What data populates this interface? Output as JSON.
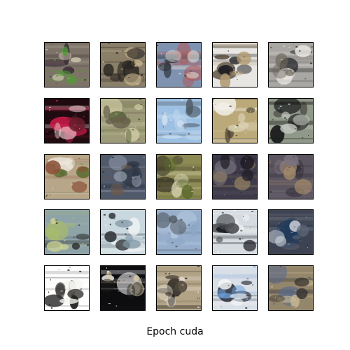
{
  "figure": {
    "caption": "Epoch cuda",
    "grid_rows": 5,
    "grid_cols": 5,
    "frame_color": "#000000",
    "samples": [
      {
        "bg": "#7e7368",
        "blobs": [
          {
            "c": "#3e2f3a"
          },
          {
            "c": "#c9c3ad"
          },
          {
            "c": "#4f9e2f"
          }
        ]
      },
      {
        "bg": "#8a7f69",
        "blobs": [
          {
            "c": "#1a1716"
          },
          {
            "c": "#cdbb8f"
          },
          {
            "c": "#2b2522"
          }
        ]
      },
      {
        "bg": "#7f93b1",
        "blobs": [
          {
            "c": "#b4524f"
          },
          {
            "c": "#2b3138"
          },
          {
            "c": "#e2d8cc"
          }
        ]
      },
      {
        "bg": "#e8e6e2",
        "blobs": [
          {
            "c": "#5a4e3d"
          },
          {
            "c": "#1b1b22"
          },
          {
            "c": "#b19a71"
          }
        ]
      },
      {
        "bg": "#a9a7a4",
        "blobs": [
          {
            "c": "#2a2b2f"
          },
          {
            "c": "#ece9e4"
          },
          {
            "c": "#6a6459"
          }
        ]
      },
      {
        "bg": "#1f0b10",
        "blobs": [
          {
            "c": "#d01b4b"
          },
          {
            "c": "#f0d5d8"
          },
          {
            "c": "#6b1d2c"
          }
        ]
      },
      {
        "bg": "#9c9a78",
        "blobs": [
          {
            "c": "#d4d0a8"
          },
          {
            "c": "#4c5a31"
          },
          {
            "c": "#6a604e"
          }
        ]
      },
      {
        "bg": "#9dbfe1",
        "blobs": [
          {
            "c": "#bfd7ef"
          },
          {
            "c": "#4b5661"
          },
          {
            "c": "#d6e5f3"
          }
        ]
      },
      {
        "bg": "#bba979",
        "blobs": [
          {
            "c": "#f3f1ec"
          },
          {
            "c": "#4a4232"
          },
          {
            "c": "#d9cfb2"
          }
        ]
      },
      {
        "bg": "#909889",
        "blobs": [
          {
            "c": "#0e0e10"
          },
          {
            "c": "#2c2a26"
          },
          {
            "c": "#c2c7bf"
          }
        ]
      },
      {
        "bg": "#b8a689",
        "blobs": [
          {
            "c": "#ede8dc"
          },
          {
            "c": "#5a6b31"
          },
          {
            "c": "#8b4e35"
          }
        ]
      },
      {
        "bg": "#515a6b",
        "blobs": [
          {
            "c": "#2c3442"
          },
          {
            "c": "#9aa4b3"
          },
          {
            "c": "#6d5a4c"
          }
        ]
      },
      {
        "bg": "#8e8a55",
        "blobs": [
          {
            "c": "#2d2c1f"
          },
          {
            "c": "#d8d4b4"
          },
          {
            "c": "#5d6a2e"
          }
        ]
      },
      {
        "bg": "#3e3a4a",
        "blobs": [
          {
            "c": "#6d6a73"
          },
          {
            "c": "#8a7a5f"
          },
          {
            "c": "#1f1d26"
          }
        ]
      },
      {
        "bg": "#5b5560",
        "blobs": [
          {
            "c": "#2f2b33"
          },
          {
            "c": "#a48a6a"
          },
          {
            "c": "#7b7280"
          }
        ]
      },
      {
        "bg": "#8ea3a8",
        "blobs": [
          {
            "c": "#a6b96d"
          },
          {
            "c": "#2b2c2b"
          },
          {
            "c": "#c9cf92"
          }
        ]
      },
      {
        "bg": "#c9d7de",
        "blobs": [
          {
            "c": "#f3f6f7"
          },
          {
            "c": "#2e3337"
          },
          {
            "c": "#7e96a4"
          }
        ]
      },
      {
        "bg": "#96aecb",
        "blobs": [
          {
            "c": "#b1c5dc"
          },
          {
            "c": "#4b5259"
          },
          {
            "c": "#8ca6c6"
          }
        ]
      },
      {
        "bg": "#d5dbe0",
        "blobs": [
          {
            "c": "#141518"
          },
          {
            "c": "#f1f2f3"
          },
          {
            "c": "#4b4d52"
          }
        ]
      },
      {
        "bg": "#3e4352",
        "blobs": [
          {
            "c": "#1f3a5b"
          },
          {
            "c": "#c7ccd4"
          },
          {
            "c": "#5f6676"
          }
        ]
      },
      {
        "bg": "#ffffff",
        "blobs": [
          {
            "c": "#1a1a1a"
          },
          {
            "c": "#f4f4f0"
          },
          {
            "c": "#23221f"
          }
        ]
      },
      {
        "bg": "#0d0d10",
        "blobs": [
          {
            "c": "#f2f2f5"
          },
          {
            "c": "#d9c9a6"
          },
          {
            "c": "#1c1a19"
          }
        ]
      },
      {
        "bg": "#b2a386",
        "blobs": [
          {
            "c": "#1c1a18"
          },
          {
            "c": "#e6ded0"
          },
          {
            "c": "#4e4539"
          }
        ]
      },
      {
        "bg": "#d9dfe6",
        "blobs": [
          {
            "c": "#2a2e3a"
          },
          {
            "c": "#6da0d9"
          },
          {
            "c": "#f5f6f8"
          }
        ]
      },
      {
        "bg": "#94866b",
        "blobs": [
          {
            "c": "#5a6a8a"
          },
          {
            "c": "#c8b894"
          },
          {
            "c": "#3b3630"
          }
        ]
      }
    ]
  }
}
